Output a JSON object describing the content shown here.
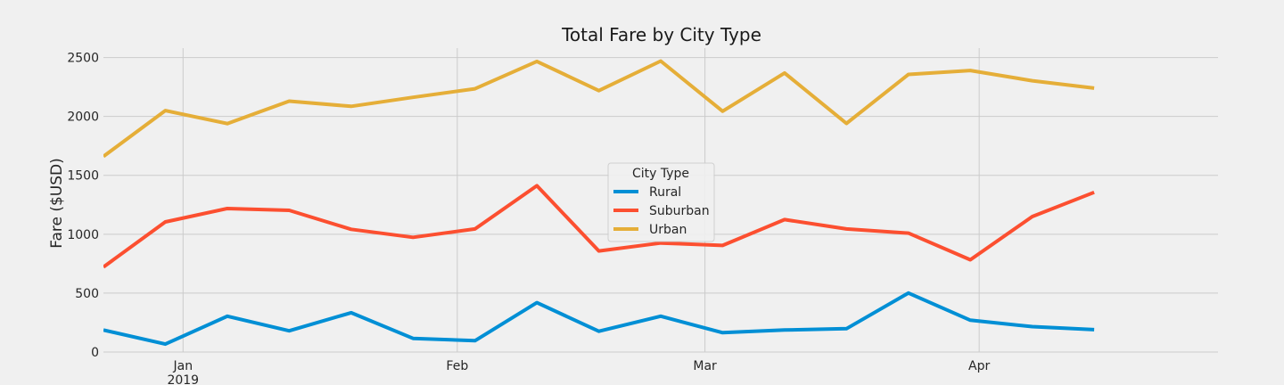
{
  "chart_data": {
    "type": "line",
    "title": "Total Fare by City Type",
    "xlabel": "",
    "ylabel": "Fare ($USD)",
    "ylim": [
      0,
      2580
    ],
    "yticks": [
      0,
      500,
      1000,
      1500,
      2000,
      2500
    ],
    "xlim": [
      "2018-12-23",
      "2019-04-28"
    ],
    "x": [
      "2018-12-23",
      "2018-12-30",
      "2019-01-06",
      "2019-01-13",
      "2019-01-20",
      "2019-01-27",
      "2019-02-03",
      "2019-02-10",
      "2019-02-17",
      "2019-02-24",
      "2019-03-03",
      "2019-03-10",
      "2019-03-17",
      "2019-03-24",
      "2019-03-31",
      "2019-04-07",
      "2019-04-14",
      "2019-04-21",
      "2019-04-28"
    ],
    "xticks": [
      {
        "date": "2019-01-01",
        "label": "Jan",
        "sublabel": "2019"
      },
      {
        "date": "2019-02-01",
        "label": "Feb",
        "sublabel": ""
      },
      {
        "date": "2019-03-01",
        "label": "Mar",
        "sublabel": ""
      },
      {
        "date": "2019-04-01",
        "label": "Apr",
        "sublabel": ""
      }
    ],
    "grid": true,
    "legend": {
      "title": "City Type",
      "position": "center"
    },
    "series": [
      {
        "name": "Rural",
        "color": "#008fd5",
        "values": [
          187,
          67,
          304,
          180,
          334,
          116,
          96,
          419,
          176,
          304,
          164,
          187,
          198,
          501,
          270,
          216,
          190,
          null,
          null
        ]
      },
      {
        "name": "Suburban",
        "color": "#fc4f30",
        "values": [
          722,
          1105,
          1218,
          1203,
          1042,
          974,
          1045,
          1412,
          858,
          925,
          905,
          1124,
          1045,
          1009,
          783,
          1150,
          1356,
          null,
          null
        ]
      },
      {
        "name": "Urban",
        "color": "#e5ae38",
        "values": [
          1661,
          2050,
          1939,
          2130,
          2086,
          2162,
          2235,
          2467,
          2219,
          2470,
          2044,
          2369,
          1941,
          2357,
          2390,
          2303,
          2240,
          null,
          null
        ]
      }
    ]
  }
}
